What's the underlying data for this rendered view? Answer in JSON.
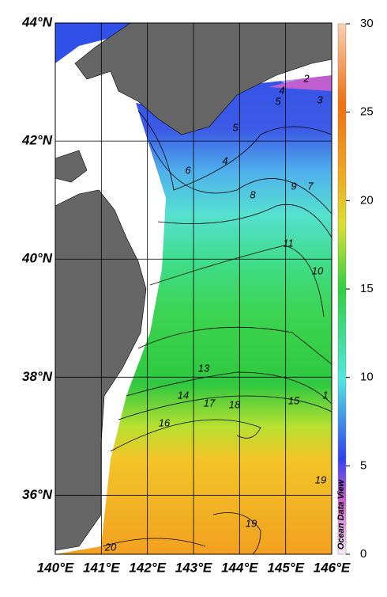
{
  "map": {
    "xlim": [
      140,
      146
    ],
    "ylim": [
      35,
      44
    ],
    "xticks": [
      {
        "value": 140,
        "label": "140°E"
      },
      {
        "value": 141,
        "label": "141°E"
      },
      {
        "value": 142,
        "label": "142°E"
      },
      {
        "value": 143,
        "label": "143°E"
      },
      {
        "value": 144,
        "label": "144°E"
      },
      {
        "value": 145,
        "label": "145°E"
      },
      {
        "value": 146,
        "label": "146°E"
      }
    ],
    "yticks": [
      {
        "value": 44,
        "label": "44°N"
      },
      {
        "value": 42,
        "label": "42°N"
      },
      {
        "value": 40,
        "label": "40°N"
      },
      {
        "value": 38,
        "label": "38°N"
      },
      {
        "value": 36,
        "label": "36°N"
      }
    ],
    "colorbar": {
      "lim": [
        0,
        30
      ],
      "ticks": [
        0,
        5,
        10,
        15,
        20,
        25,
        30
      ]
    },
    "contour_labels": [
      2,
      3,
      4,
      5,
      5,
      4,
      6,
      8,
      9,
      7,
      11,
      10,
      13,
      14,
      17,
      18,
      15,
      1,
      16,
      19,
      19,
      20
    ],
    "credit": "Ocean Data View"
  }
}
